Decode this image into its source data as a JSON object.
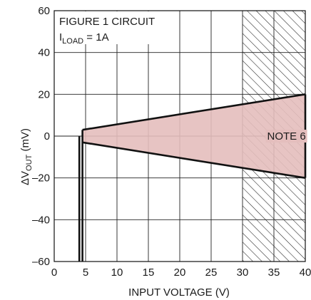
{
  "chart_data": {
    "type": "area",
    "xlabel": "INPUT VOLTAGE (V)",
    "ylabel": {
      "prefix": "ΔV",
      "sub": "OUT",
      "suffix": " (mV)"
    },
    "xlim": [
      0,
      40
    ],
    "ylim": [
      -60,
      60
    ],
    "xticks": [
      0,
      5,
      10,
      15,
      20,
      25,
      30,
      35,
      40
    ],
    "yticks": [
      -60,
      -40,
      -20,
      0,
      20,
      40,
      60
    ],
    "ytick_labels": [
      "–60",
      "–40",
      "–20",
      "0",
      "20",
      "40",
      "60"
    ],
    "grid": true,
    "annotations": {
      "line1": "FIGURE 1 CIRCUIT",
      "line2": {
        "prefix": "I",
        "sub": "LOAD",
        "suffix": " = 1A"
      }
    },
    "note_label": "NOTE 6",
    "hatched_region": {
      "x": [
        30,
        40
      ]
    },
    "series": [
      {
        "x": [
          4.5,
          40
        ],
        "y": [
          3,
          20
        ]
      },
      {
        "x": [
          4.5,
          40
        ],
        "y": [
          -3,
          -20
        ]
      },
      {
        "x": [
          4.5,
          4.5
        ],
        "y": [
          -60,
          3
        ]
      },
      {
        "x": [
          4.0,
          4.0
        ],
        "y": [
          -60,
          0
        ]
      }
    ],
    "colors": {
      "fill": "#e4bebd",
      "line": "#111111",
      "grid": "#222222"
    }
  }
}
